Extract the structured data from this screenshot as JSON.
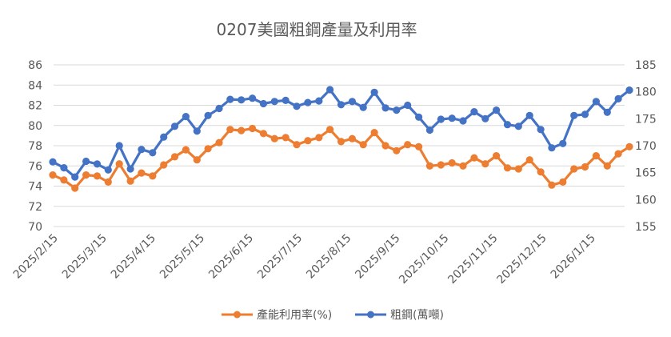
{
  "chart_data": {
    "type": "line",
    "title": "0207美國粗鋼產量及利用率",
    "x_tick_labels": [
      "2025/2/15",
      "2025/3/15",
      "2025/4/15",
      "2025/5/15",
      "2025/6/15",
      "2025/7/15",
      "2025/8/15",
      "2025/9/15",
      "2025/10/15",
      "2025/11/15",
      "2025/12/15",
      "2026/1/15"
    ],
    "y_left": {
      "min": 70,
      "max": 86,
      "step": 2,
      "ticks": [
        "70",
        "72",
        "74",
        "76",
        "78",
        "80",
        "82",
        "84",
        "86"
      ]
    },
    "y_right": {
      "min": 155,
      "max": 185,
      "step": 5,
      "ticks": [
        "155",
        "160",
        "165",
        "170",
        "175",
        "180",
        "185"
      ]
    },
    "series": [
      {
        "name": "產能利用率(%)",
        "axis": "left",
        "color": "#ED7D31",
        "values": [
          75.1,
          74.6,
          73.8,
          75.1,
          75.0,
          74.4,
          76.2,
          74.5,
          75.3,
          75.0,
          76.1,
          76.9,
          77.6,
          76.6,
          77.7,
          78.3,
          79.6,
          79.5,
          79.7,
          79.2,
          78.7,
          78.8,
          78.1,
          78.5,
          78.8,
          79.6,
          78.4,
          78.7,
          78.1,
          79.3,
          78.0,
          77.5,
          78.1,
          77.9,
          76.0,
          76.1,
          76.3,
          76.0,
          76.8,
          76.2,
          77.0,
          75.8,
          75.7,
          76.6,
          75.4,
          74.1,
          74.4,
          75.7,
          75.9,
          77.0,
          76.0,
          77.2,
          77.9
        ]
      },
      {
        "name": "粗鋼(萬噸)",
        "axis": "right",
        "color": "#4472C4",
        "values": [
          167.0,
          165.9,
          164.2,
          167.1,
          166.6,
          165.5,
          170.0,
          165.7,
          169.3,
          168.7,
          171.6,
          173.6,
          175.4,
          172.7,
          175.6,
          176.9,
          178.6,
          178.5,
          178.8,
          177.8,
          178.2,
          178.4,
          177.3,
          178.0,
          178.3,
          180.4,
          177.6,
          178.2,
          177.1,
          179.9,
          177.0,
          176.6,
          177.5,
          175.3,
          172.9,
          174.9,
          175.1,
          174.6,
          176.3,
          175.0,
          176.6,
          173.9,
          173.6,
          175.6,
          173.0,
          169.6,
          170.4,
          175.6,
          175.8,
          178.2,
          176.2,
          178.7,
          180.3
        ]
      }
    ]
  }
}
